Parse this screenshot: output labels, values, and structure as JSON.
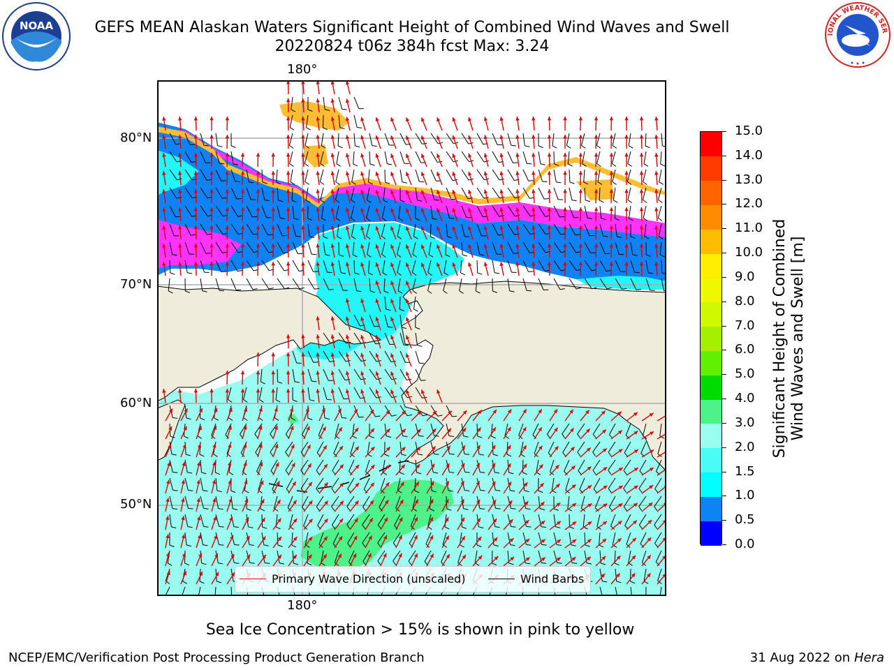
{
  "header": {
    "title_line1": "GEFS MEAN Alaskan Waters Significant Height of Combined Wind Waves and Swell",
    "title_line2": "20220824 t06z 384h fcst   Max: 3.24"
  },
  "logos": {
    "left": {
      "text": "NOAA",
      "ring_text": "NATIONAL OCEANIC AND ATMOSPHERIC ADMINISTRATION · U.S. DEPARTMENT OF COMMERCE",
      "icon": "noaa-logo"
    },
    "right": {
      "ring_text": "NATIONAL WEATHER SERVICE",
      "icon": "nws-logo"
    }
  },
  "map": {
    "lon_label_top": "180°",
    "lon_label_bottom": "180°",
    "lat_labels": [
      "80°N",
      "70°N",
      "60°N",
      "50°N"
    ],
    "colors": {
      "land": "#efecdc",
      "sea_light": "#9afcf0",
      "sea_cyan": "#22f6f6",
      "blue": "#0f83f6",
      "magenta": "#ff33ff",
      "ice_orange": "#ffbd33",
      "green": "#4ef28a",
      "gridline": "#aaaaaa",
      "wave_arrow": "#e00000",
      "wind_barb": "#000000"
    }
  },
  "legend": {
    "items": [
      {
        "label": "Primary Wave Direction (unscaled)",
        "color": "#ff0000"
      },
      {
        "label": "Wind Barbs",
        "color": "#000000"
      }
    ]
  },
  "colorbar": {
    "title": "Significant Height of Combined Wind Waves and Swell [m]",
    "ticks": [
      "0.0",
      "0.5",
      "1.0",
      "1.5",
      "2.0",
      "3.0",
      "4.0",
      "5.0",
      "6.0",
      "7.0",
      "8.0",
      "9.0",
      "10.0",
      "11.0",
      "12.0",
      "13.0",
      "14.0",
      "15.0"
    ],
    "colors": [
      "#0000ff",
      "#0f83f6",
      "#00ffff",
      "#4afcf6",
      "#9bfcf0",
      "#4ef28a",
      "#00dc00",
      "#60f000",
      "#a4f000",
      "#d0f800",
      "#f0f800",
      "#ffee00",
      "#ffbd00",
      "#ff8c00",
      "#ff6400",
      "#ff3c00",
      "#ff0000"
    ]
  },
  "footer": {
    "note": "Sea Ice Concentration > 15% is shown in pink to yellow",
    "credit_left": "NCEP/EMC/Verification Post Processing Product Generation Branch",
    "credit_date": "31 Aug 2022 on",
    "credit_host": "Hera"
  }
}
